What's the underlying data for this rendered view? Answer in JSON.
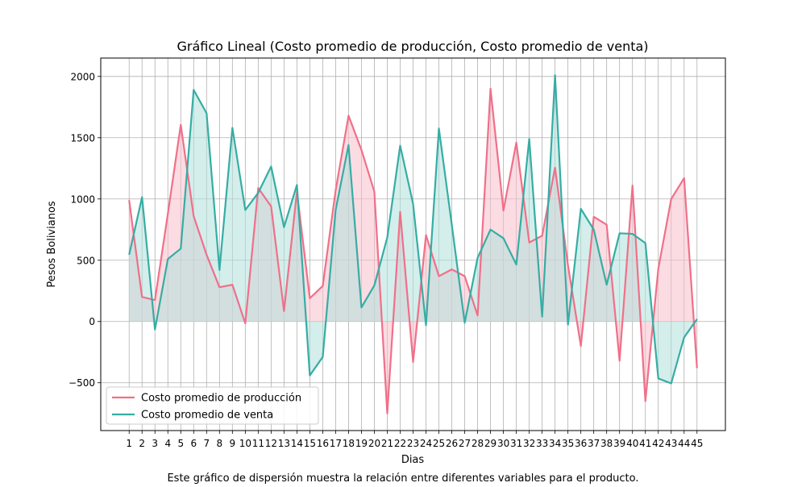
{
  "chart_data": {
    "type": "line",
    "title": "Gráfico Lineal (Costo promedio de producción, Costo promedio de venta)",
    "xlabel": "Dias",
    "ylabel": "Pesos Bolivianos",
    "caption": "Este gráfico de dispersión muestra la relación entre diferentes variables para el producto.",
    "x": [
      1,
      2,
      3,
      4,
      5,
      6,
      7,
      8,
      9,
      10,
      11,
      12,
      13,
      14,
      15,
      16,
      17,
      18,
      19,
      20,
      21,
      22,
      23,
      24,
      25,
      26,
      27,
      28,
      29,
      30,
      31,
      32,
      33,
      34,
      35,
      36,
      37,
      38,
      39,
      40,
      41,
      42,
      43,
      44,
      45
    ],
    "xticks": [
      "1",
      "2",
      "3",
      "4",
      "5",
      "6",
      "7",
      "8",
      "9",
      "10",
      "11",
      "12",
      "13",
      "14",
      "15",
      "16",
      "17",
      "18",
      "19",
      "20",
      "21",
      "22",
      "23",
      "24",
      "25",
      "26",
      "27",
      "28",
      "29",
      "30",
      "31",
      "32",
      "33",
      "34",
      "35",
      "36",
      "37",
      "38",
      "39",
      "40",
      "41",
      "42",
      "43",
      "44",
      "45"
    ],
    "yticks": [
      -500,
      0,
      500,
      1000,
      1500,
      2000
    ],
    "ytick_labels": [
      "−500",
      "0",
      "500",
      "1000",
      "1500",
      "2000"
    ],
    "xlim": [
      -1.2,
      47.2
    ],
    "ylim": [
      -890,
      2150
    ],
    "grid": true,
    "legend_position": "lower-left",
    "series": [
      {
        "name": "Costo promedio de producción",
        "color": "#f07089",
        "fill_color": "#f9c0cc",
        "values": [
          990,
          200,
          175,
          880,
          1605,
          860,
          545,
          280,
          300,
          -15,
          1090,
          940,
          85,
          1060,
          190,
          290,
          1070,
          1680,
          1400,
          1060,
          -750,
          895,
          -330,
          705,
          370,
          425,
          370,
          50,
          1900,
          905,
          1460,
          645,
          700,
          1255,
          460,
          -200,
          855,
          790,
          -320,
          1110,
          -650,
          430,
          1000,
          1170,
          -380
        ]
      },
      {
        "name": "Costo promedio de venta",
        "color": "#36ada4",
        "fill_color": "#b1e0dc",
        "values": [
          545,
          1015,
          -65,
          510,
          595,
          1890,
          1700,
          420,
          1580,
          910,
          1050,
          1265,
          770,
          1115,
          -440,
          -290,
          910,
          1440,
          115,
          295,
          685,
          1435,
          960,
          -30,
          1575,
          790,
          -10,
          520,
          750,
          680,
          465,
          1490,
          40,
          2010,
          -25,
          920,
          750,
          300,
          720,
          715,
          640,
          -465,
          -505,
          -130,
          20
        ]
      }
    ]
  }
}
